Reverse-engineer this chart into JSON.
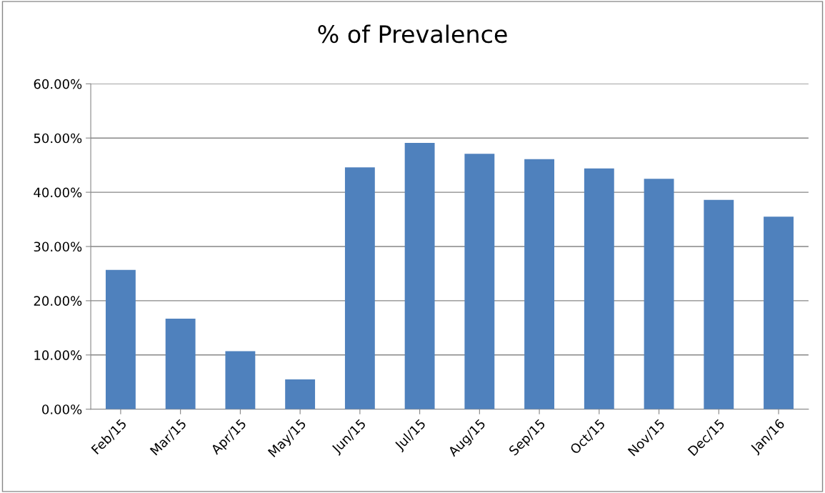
{
  "chart_data": {
    "type": "bar",
    "title": "% of Prevalence",
    "categories": [
      "Feb/15",
      "Mar/15",
      "Apr/15",
      "May/15",
      "Jun/15",
      "Jul/15",
      "Aug/15",
      "Sep/15",
      "Oct/15",
      "Nov/15",
      "Dec/15",
      "Jan/16"
    ],
    "values": [
      25.7,
      16.7,
      10.7,
      5.5,
      44.6,
      49.1,
      47.1,
      46.1,
      44.4,
      42.5,
      38.6,
      35.5
    ],
    "color": "#4f81bd",
    "ylim": [
      0,
      60
    ],
    "yticks": [
      {
        "value": 0,
        "label": "0.00%"
      },
      {
        "value": 10,
        "label": "10.00%"
      },
      {
        "value": 20,
        "label": "20.00%"
      },
      {
        "value": 30,
        "label": "30.00%"
      },
      {
        "value": 40,
        "label": "40.00%"
      },
      {
        "value": 50,
        "label": "50.00%"
      },
      {
        "value": 60,
        "label": "60.00%"
      }
    ],
    "grid": "y"
  }
}
